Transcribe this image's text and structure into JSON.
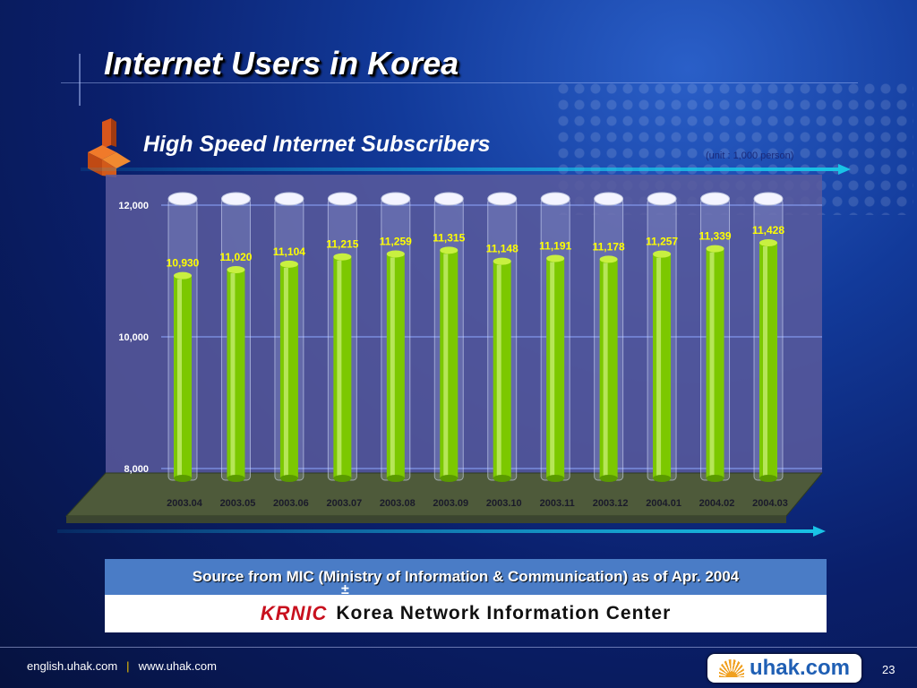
{
  "header": {
    "title": "Internet Users in Korea",
    "subtitle": "High Speed Internet Subscribers",
    "unit": "(unit : 1,000 person)"
  },
  "chart_data": {
    "type": "bar",
    "categories": [
      "2003.04",
      "2003.05",
      "2003.06",
      "2003.07",
      "2003.08",
      "2003.09",
      "2003.10",
      "2003.11",
      "2003.12",
      "2004.01",
      "2004.02",
      "2004.03"
    ],
    "values": [
      10930,
      11020,
      11104,
      11215,
      11259,
      11315,
      11148,
      11191,
      11178,
      11257,
      11339,
      11428
    ],
    "value_labels": [
      "10,930",
      "11,020",
      "11,104",
      "11,215",
      "11,259",
      "11,315",
      "11,148",
      "11,191",
      "11,178",
      "11,257",
      "11,339",
      "11,428"
    ],
    "yticks": [
      8000,
      10000,
      12000
    ],
    "ytick_labels": [
      "8,000",
      "10,000",
      "12,000"
    ],
    "ylim": [
      8000,
      12000
    ],
    "grid": true
  },
  "source": {
    "text": "Source from MIC (Ministry of Information & Communication) as of Apr. 2004",
    "symbol": "±",
    "org_logo": "KRNIC",
    "org_name": "Korea Network Information Center"
  },
  "footer": {
    "link1": "english.uhak.com",
    "separator": "|",
    "link2": "www.uhak.com",
    "brand": "uhak.com",
    "page": "23"
  },
  "colors": {
    "plot_bg": "#5a5a9c",
    "floor": "#4e5a3a",
    "bar_fill": "#7cc800",
    "value_label": "#ffff00"
  }
}
